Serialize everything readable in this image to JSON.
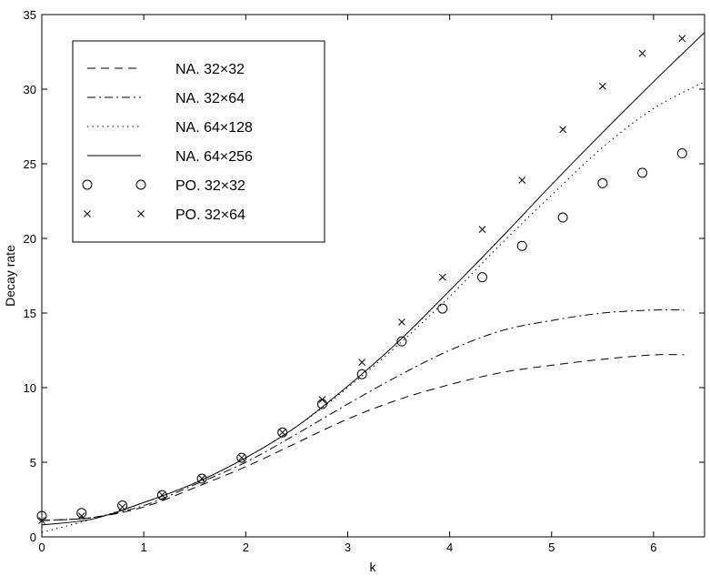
{
  "chart_data": {
    "type": "line",
    "title": "",
    "xlabel": "k",
    "ylabel": "Decay rate",
    "xlim": [
      0,
      6.5
    ],
    "ylim": [
      0,
      35
    ],
    "xticks": [
      0,
      1,
      2,
      3,
      4,
      5,
      6
    ],
    "yticks": [
      0,
      5,
      10,
      15,
      20,
      25,
      30,
      35
    ],
    "grid": false,
    "legend_position": "top-left",
    "series": [
      {
        "name": "NA. 32×32",
        "style": "dashed",
        "x": [
          0,
          0.5,
          1.0,
          1.5,
          2.0,
          2.5,
          3.0,
          3.5,
          4.0,
          4.5,
          5.0,
          5.5,
          6.0,
          6.3
        ],
        "y": [
          1.1,
          1.3,
          2.0,
          3.3,
          4.7,
          6.3,
          7.9,
          9.2,
          10.2,
          11.0,
          11.5,
          11.9,
          12.2,
          12.2
        ]
      },
      {
        "name": "NA. 32×64",
        "style": "dashdot",
        "x": [
          0,
          0.5,
          1.0,
          1.5,
          2.0,
          2.5,
          3.0,
          3.5,
          4.0,
          4.5,
          5.0,
          5.5,
          6.0,
          6.3
        ],
        "y": [
          1.1,
          1.3,
          2.1,
          3.5,
          5.0,
          6.9,
          8.9,
          10.8,
          12.5,
          13.8,
          14.5,
          15.0,
          15.2,
          15.2
        ]
      },
      {
        "name": "NA. 64×128",
        "style": "dotted",
        "x": [
          0,
          0.5,
          1.0,
          1.5,
          2.0,
          2.5,
          3.0,
          3.5,
          4.0,
          4.5,
          5.0,
          5.5,
          6.0,
          6.5
        ],
        "y": [
          0.3,
          1.2,
          2.3,
          3.6,
          5.3,
          7.4,
          10.0,
          12.9,
          16.1,
          19.6,
          22.9,
          26.1,
          28.7,
          30.5
        ]
      },
      {
        "name": "NA. 64×256",
        "style": "solid",
        "x": [
          0,
          0.5,
          1.0,
          1.5,
          2.0,
          2.5,
          3.0,
          3.5,
          4.0,
          4.5,
          5.0,
          5.5,
          6.0,
          6.5
        ],
        "y": [
          0.8,
          1.2,
          2.3,
          3.6,
          5.3,
          7.4,
          10.1,
          13.1,
          16.5,
          20.0,
          23.6,
          27.1,
          30.5,
          33.8
        ]
      },
      {
        "name": "PO. 32×32",
        "style": "circle",
        "x": [
          0,
          0.39,
          0.79,
          1.18,
          1.57,
          1.96,
          2.36,
          2.75,
          3.14,
          3.53,
          3.93,
          4.32,
          4.71,
          5.11,
          5.5,
          5.89,
          6.28
        ],
        "y": [
          1.4,
          1.6,
          2.1,
          2.8,
          3.9,
          5.3,
          7.0,
          8.9,
          10.9,
          13.1,
          15.3,
          17.4,
          19.5,
          21.4,
          23.7,
          24.4,
          25.7
        ]
      },
      {
        "name": "PO. 32×64",
        "style": "cross",
        "x": [
          0,
          0.39,
          0.79,
          1.18,
          1.57,
          1.96,
          2.36,
          2.75,
          3.14,
          3.53,
          3.93,
          4.32,
          4.71,
          5.11,
          5.5,
          5.89,
          6.28
        ],
        "y": [
          1.1,
          1.4,
          2.0,
          2.8,
          3.9,
          5.3,
          7.0,
          9.2,
          11.7,
          14.4,
          17.4,
          20.6,
          23.9,
          27.3,
          30.2,
          32.4,
          33.4
        ]
      }
    ]
  }
}
